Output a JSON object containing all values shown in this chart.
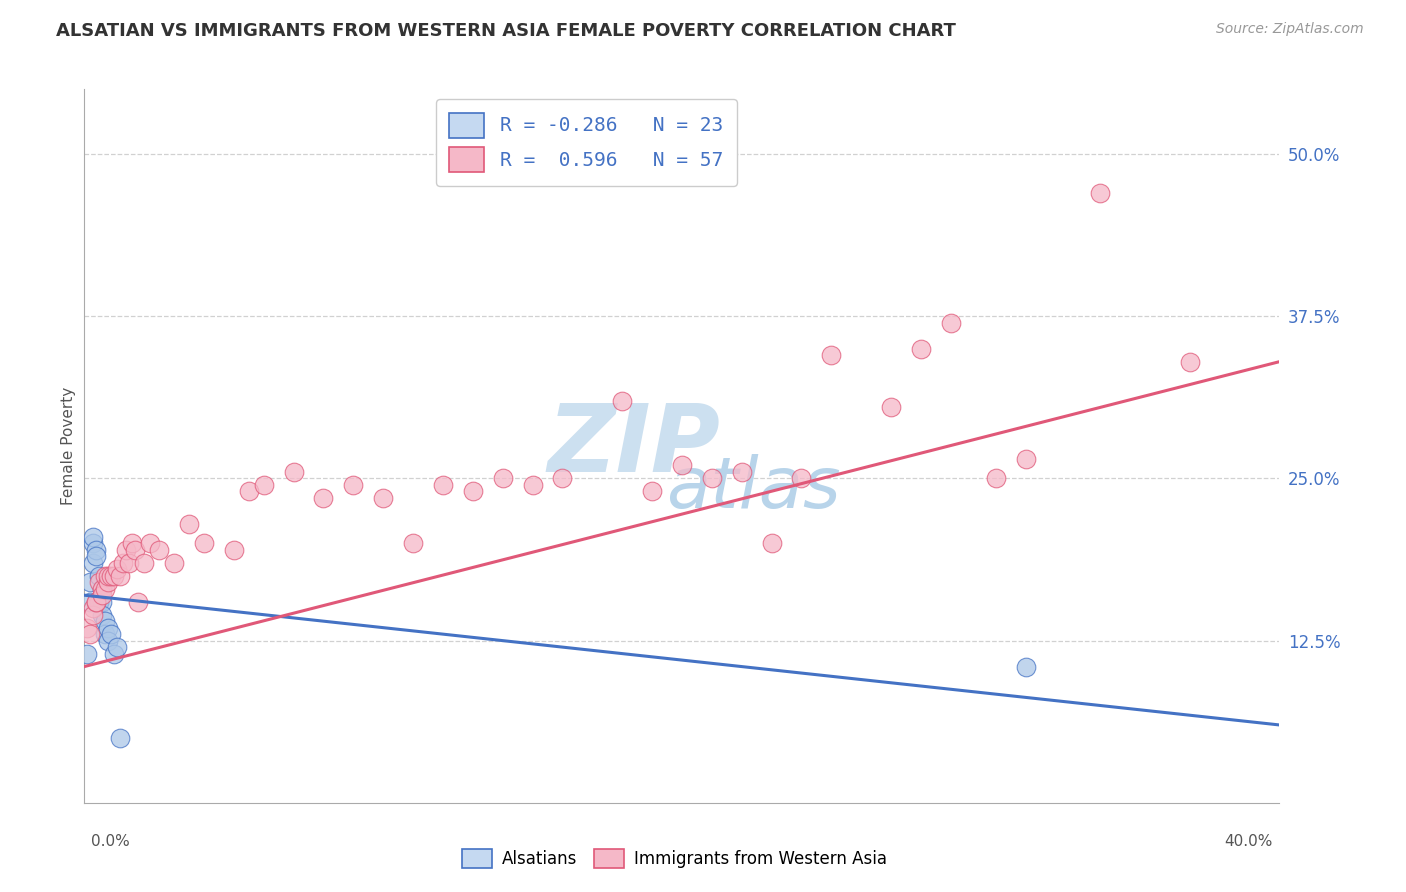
{
  "title": "ALSATIAN VS IMMIGRANTS FROM WESTERN ASIA FEMALE POVERTY CORRELATION CHART",
  "source": "Source: ZipAtlas.com",
  "ylabel": "Female Poverty",
  "right_yticks": [
    "50.0%",
    "37.5%",
    "25.0%",
    "12.5%"
  ],
  "right_ytick_vals": [
    0.5,
    0.375,
    0.25,
    0.125
  ],
  "legend_blue_label": "R = -0.286   N = 23",
  "legend_pink_label": "R =  0.596   N = 57",
  "blue_scatter_x": [
    0.001,
    0.002,
    0.002,
    0.003,
    0.003,
    0.003,
    0.004,
    0.004,
    0.005,
    0.005,
    0.005,
    0.006,
    0.006,
    0.006,
    0.007,
    0.007,
    0.008,
    0.008,
    0.009,
    0.01,
    0.011,
    0.012,
    0.315
  ],
  "blue_scatter_y": [
    0.115,
    0.155,
    0.17,
    0.2,
    0.205,
    0.185,
    0.195,
    0.19,
    0.175,
    0.155,
    0.155,
    0.165,
    0.155,
    0.145,
    0.14,
    0.13,
    0.135,
    0.125,
    0.13,
    0.115,
    0.12,
    0.05,
    0.105
  ],
  "pink_scatter_x": [
    0.001,
    0.002,
    0.003,
    0.003,
    0.004,
    0.004,
    0.005,
    0.006,
    0.006,
    0.007,
    0.007,
    0.008,
    0.008,
    0.009,
    0.01,
    0.011,
    0.012,
    0.013,
    0.014,
    0.015,
    0.016,
    0.017,
    0.018,
    0.02,
    0.022,
    0.025,
    0.03,
    0.035,
    0.04,
    0.05,
    0.055,
    0.06,
    0.07,
    0.08,
    0.09,
    0.1,
    0.11,
    0.12,
    0.13,
    0.14,
    0.15,
    0.16,
    0.18,
    0.19,
    0.2,
    0.21,
    0.22,
    0.23,
    0.24,
    0.25,
    0.27,
    0.28,
    0.29,
    0.305,
    0.315,
    0.34,
    0.37
  ],
  "pink_scatter_y": [
    0.135,
    0.13,
    0.15,
    0.145,
    0.155,
    0.155,
    0.17,
    0.165,
    0.16,
    0.175,
    0.165,
    0.17,
    0.175,
    0.175,
    0.175,
    0.18,
    0.175,
    0.185,
    0.195,
    0.185,
    0.2,
    0.195,
    0.155,
    0.185,
    0.2,
    0.195,
    0.185,
    0.215,
    0.2,
    0.195,
    0.24,
    0.245,
    0.255,
    0.235,
    0.245,
    0.235,
    0.2,
    0.245,
    0.24,
    0.25,
    0.245,
    0.25,
    0.31,
    0.24,
    0.26,
    0.25,
    0.255,
    0.2,
    0.25,
    0.345,
    0.305,
    0.35,
    0.37,
    0.25,
    0.265,
    0.47,
    0.34
  ],
  "blue_line_x": [
    0.0,
    0.4
  ],
  "blue_line_y": [
    0.16,
    0.06
  ],
  "pink_line_x": [
    0.0,
    0.4
  ],
  "pink_line_y": [
    0.105,
    0.34
  ],
  "xlim": [
    0.0,
    0.4
  ],
  "ylim": [
    0.0,
    0.55
  ],
  "blue_color": "#adc8e8",
  "blue_line_color": "#4472c4",
  "pink_color": "#f5b8c8",
  "pink_line_color": "#e05878",
  "legend_blue_fill": "#c5d9f1",
  "legend_pink_fill": "#f5b8c8",
  "grid_color": "#cccccc",
  "background_color": "#ffffff",
  "title_fontsize": 13,
  "source_fontsize": 10,
  "scatter_size": 180,
  "scatter_alpha": 0.75,
  "bottom_legend_labels": [
    "Alsatians",
    "Immigrants from Western Asia"
  ]
}
